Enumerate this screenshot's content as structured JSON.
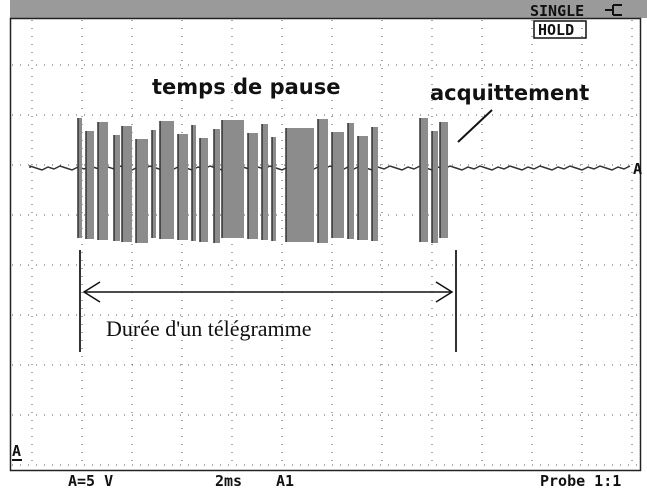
{
  "status": {
    "mode": "SINGLE",
    "hold": "HOLD"
  },
  "annotations": {
    "pause": "temps de pause",
    "ack": "acquittement",
    "duration": "Durée d'un télégramme"
  },
  "markers": {
    "trace_right": "A",
    "ground": "A"
  },
  "footer": {
    "scale": "A=5 V",
    "timebase": "2ms",
    "trigger": "A1",
    "probe": "Probe 1:1"
  }
}
